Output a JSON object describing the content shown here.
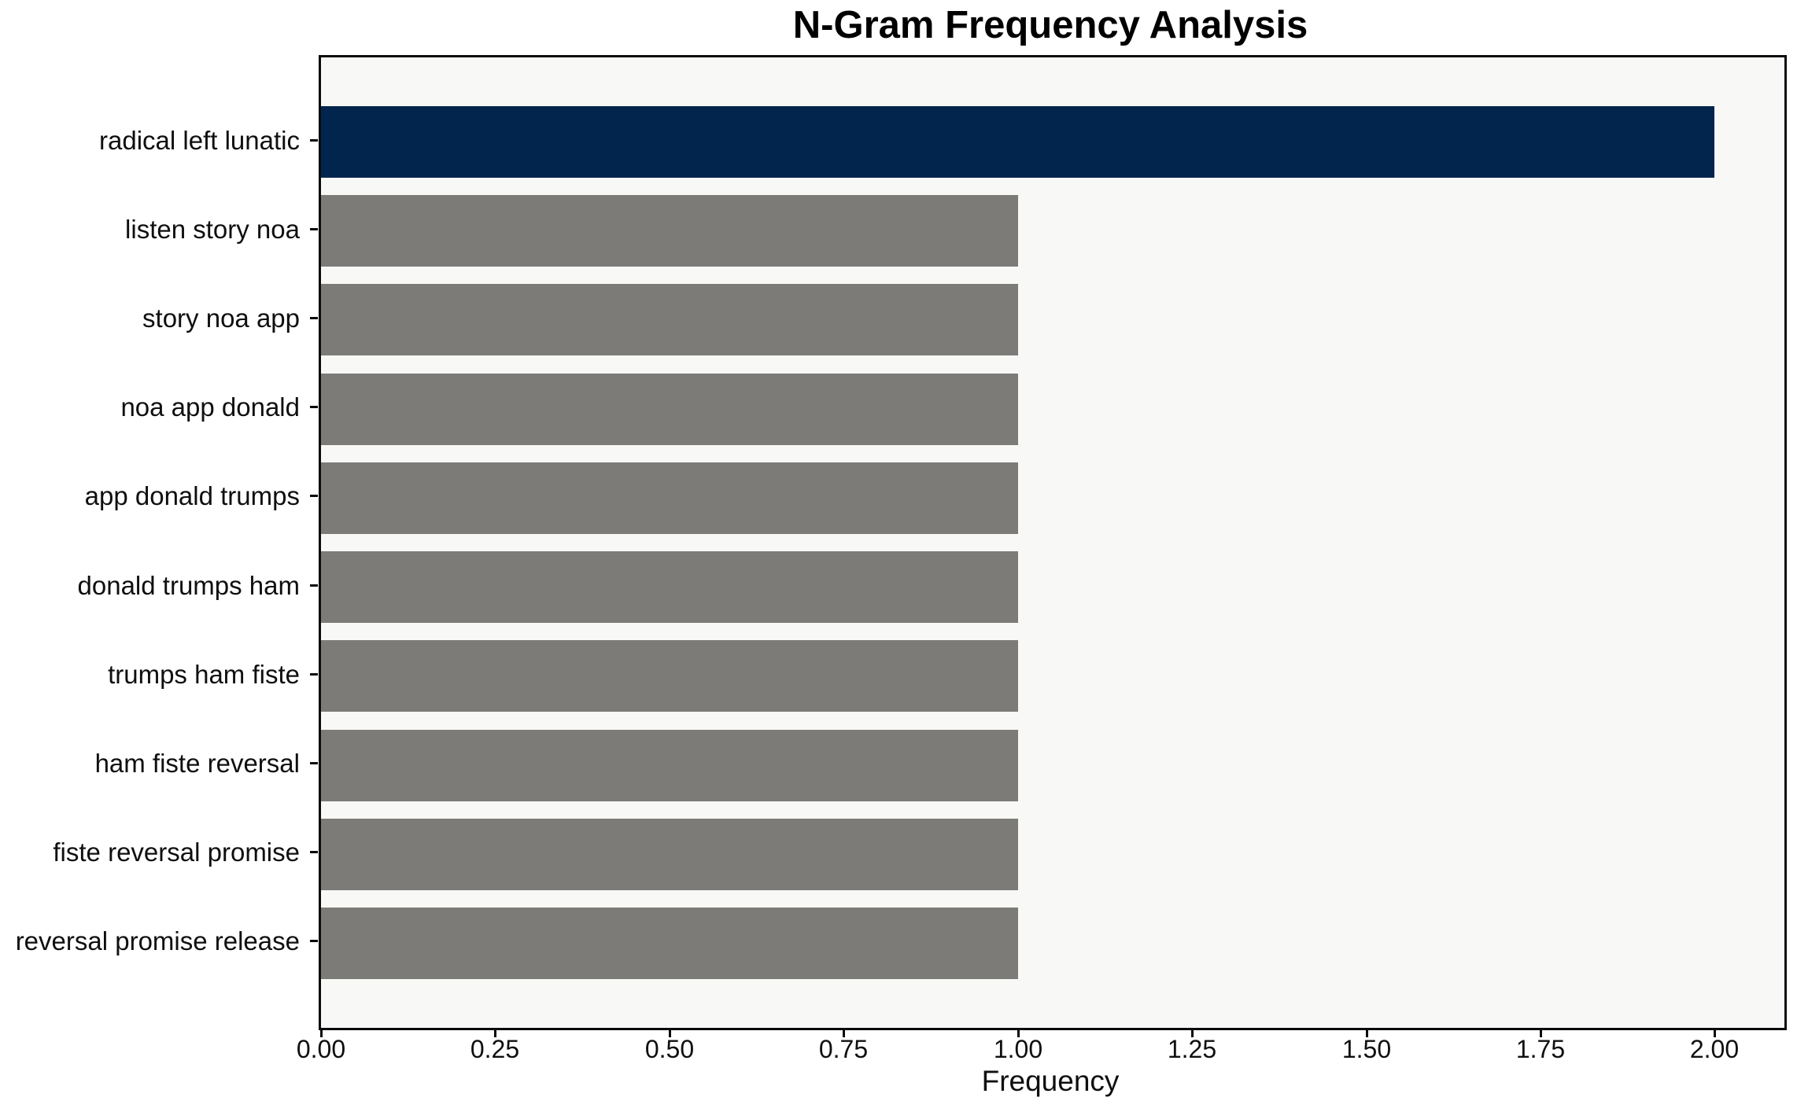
{
  "chart_data": {
    "type": "bar",
    "orientation": "horizontal",
    "title": "N-Gram Frequency Analysis",
    "xlabel": "Frequency",
    "ylabel": "",
    "categories": [
      "radical left lunatic",
      "listen story noa",
      "story noa app",
      "noa app donald",
      "app donald trumps",
      "donald trumps ham",
      "trumps ham fiste",
      "ham fiste reversal",
      "fiste reversal promise",
      "reversal promise release"
    ],
    "values": [
      2,
      1,
      1,
      1,
      1,
      1,
      1,
      1,
      1,
      1
    ],
    "bar_colors": [
      "#02254E",
      "#7C7B78",
      "#7C7B78",
      "#7C7B78",
      "#7C7B78",
      "#7C7B78",
      "#7C7B78",
      "#7C7B78",
      "#7C7B78",
      "#7C7B78"
    ],
    "xlim": [
      0,
      2.1
    ],
    "xticks": [
      {
        "value": 0.0,
        "label": "0.00"
      },
      {
        "value": 0.25,
        "label": "0.25"
      },
      {
        "value": 0.5,
        "label": "0.50"
      },
      {
        "value": 0.75,
        "label": "0.75"
      },
      {
        "value": 1.0,
        "label": "1.00"
      },
      {
        "value": 1.25,
        "label": "1.25"
      },
      {
        "value": 1.5,
        "label": "1.50"
      },
      {
        "value": 1.75,
        "label": "1.75"
      },
      {
        "value": 2.0,
        "label": "2.00"
      }
    ],
    "grid": false,
    "legend": null,
    "colors": {
      "highlight_bar": "#02254E",
      "default_bar": "#7C7B78",
      "plot_background": "#F8F8F7",
      "figure_background": "#FFFFFF",
      "spine": "#0B0B0B",
      "text": "#0F0F0F"
    }
  }
}
